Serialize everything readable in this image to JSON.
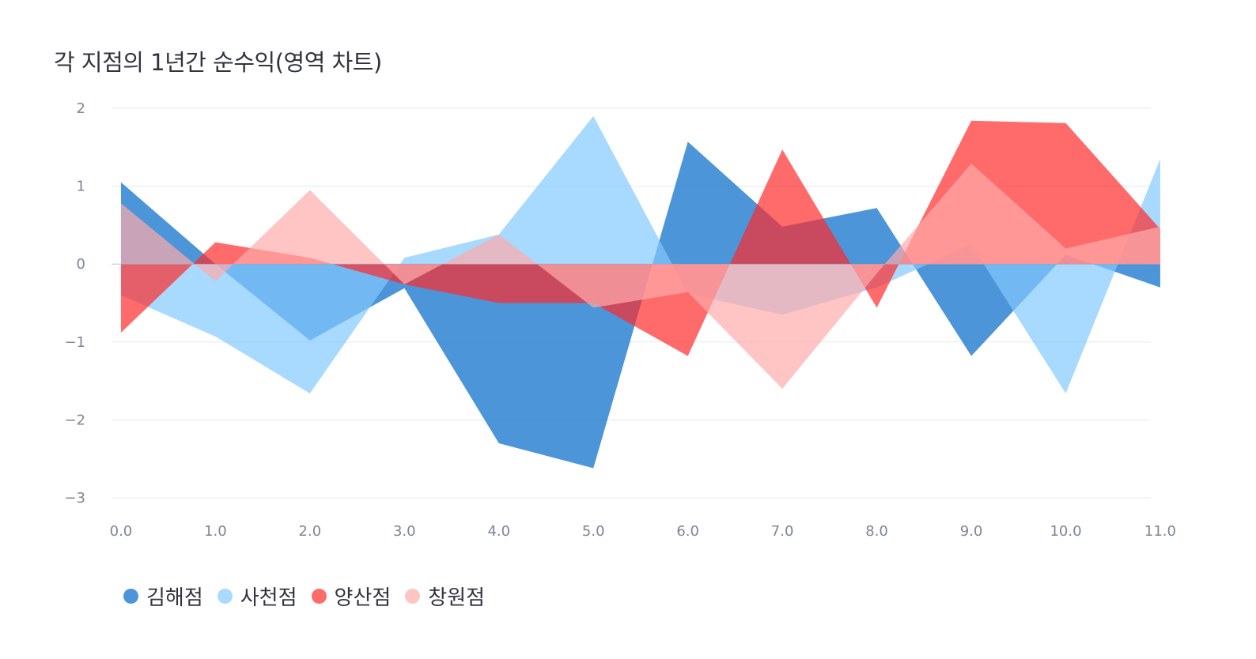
{
  "chart_data": {
    "type": "area",
    "title": "각 지점의 1년간 순수익(영역 차트)",
    "xlabel": "",
    "ylabel": "",
    "x": [
      0,
      1,
      2,
      3,
      4,
      5,
      6,
      7,
      8,
      9,
      10,
      11
    ],
    "x_tick_labels": [
      "0.0",
      "1.0",
      "2.0",
      "3.0",
      "4.0",
      "5.0",
      "6.0",
      "7.0",
      "8.0",
      "9.0",
      "10.0",
      "11.0"
    ],
    "y_ticks": [
      2,
      1,
      0,
      -1,
      -2,
      -3
    ],
    "y_tick_labels": [
      "2",
      "1",
      "0",
      "−1",
      "−2",
      "−3"
    ],
    "xlim": [
      -0.1,
      10.9
    ],
    "ylim": [
      -3,
      2
    ],
    "grid": true,
    "legend_position": "bottom-left",
    "series": [
      {
        "name": "김해점",
        "color": "#0068c9",
        "opacity": 0.7,
        "values": [
          1.05,
          0.0,
          -0.98,
          -0.31,
          -2.3,
          -2.62,
          1.57,
          0.48,
          0.72,
          -1.18,
          0.12,
          -0.3
        ]
      },
      {
        "name": "사천점",
        "color": "#83c9ff",
        "opacity": 0.7,
        "values": [
          -0.4,
          -0.93,
          -1.66,
          0.08,
          0.38,
          1.9,
          -0.38,
          -0.65,
          -0.3,
          0.25,
          -1.66,
          1.35
        ]
      },
      {
        "name": "양산점",
        "color": "#ff2b2b",
        "opacity": 0.7,
        "values": [
          -0.88,
          0.28,
          0.08,
          -0.26,
          -0.5,
          -0.5,
          -1.18,
          1.47,
          -0.56,
          1.84,
          1.81,
          0.45
        ]
      },
      {
        "name": "창원점",
        "color": "#ffabab",
        "opacity": 0.7,
        "values": [
          0.78,
          -0.22,
          0.95,
          -0.26,
          0.38,
          -0.56,
          -0.36,
          -1.6,
          -0.12,
          1.29,
          0.2,
          0.48
        ]
      }
    ]
  }
}
